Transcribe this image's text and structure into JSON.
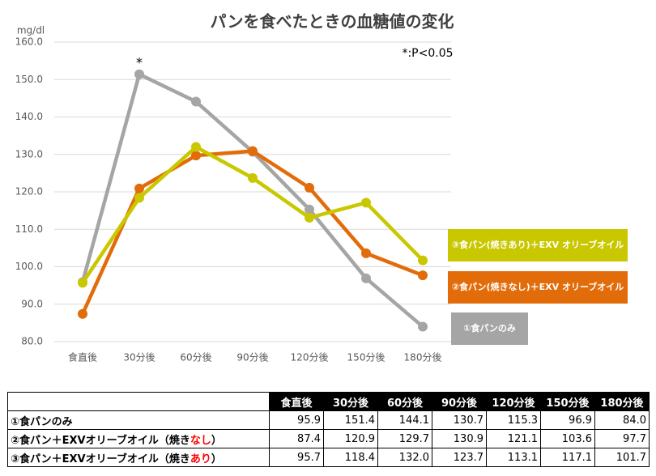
{
  "chart_data": {
    "type": "line",
    "title": "パンを食べたときの血糖値の変化",
    "y_unit": "mg/dl",
    "note": "*:P<0.05",
    "significance_marker": "*",
    "categories": [
      "食直後",
      "30分後",
      "60分後",
      "90分後",
      "120分後",
      "150分後",
      "180分後"
    ],
    "series": [
      {
        "name": "①食パンのみ",
        "color": "#a5a5a5",
        "values": [
          95.9,
          151.4,
          144.1,
          130.7,
          115.3,
          96.9,
          84.0
        ]
      },
      {
        "name": "②食パン(焼きなし)＋EXV オリーブオイル",
        "color": "#e36c0a",
        "values": [
          87.4,
          120.9,
          129.7,
          130.9,
          121.1,
          103.6,
          97.7
        ]
      },
      {
        "name": "③食パン(焼きあり)＋EXV オリーブオイル",
        "color": "#c9c800",
        "values": [
          95.7,
          118.4,
          132.0,
          123.7,
          113.1,
          117.1,
          101.7
        ]
      }
    ],
    "ylim": [
      80,
      160
    ],
    "yticks": [
      {
        "value": 80,
        "label": "80.0"
      },
      {
        "value": 90,
        "label": "90.0"
      },
      {
        "value": 100,
        "label": "100.0"
      },
      {
        "value": 110,
        "label": "110.0"
      },
      {
        "value": 120,
        "label": "120.0"
      },
      {
        "value": 130,
        "label": "130.0"
      },
      {
        "value": 140,
        "label": "140.0"
      },
      {
        "value": 150,
        "label": "150.0"
      },
      {
        "value": 160,
        "label": "160.0"
      }
    ],
    "grid": true
  },
  "table": {
    "rows": [
      {
        "label": [
          "①食パンのみ"
        ],
        "cells": [
          "95.9",
          "151.4",
          "144.1",
          "130.7",
          "115.3",
          "96.9",
          "84.0"
        ]
      },
      {
        "label": [
          "②食パン＋EXVオリーブオイル（焼き",
          "なし",
          "）"
        ],
        "cells": [
          "87.4",
          "120.9",
          "129.7",
          "130.9",
          "121.1",
          "103.6",
          "97.7"
        ]
      },
      {
        "label": [
          "③食パン＋EXVオリーブオイル（焼き",
          "あり",
          "）"
        ],
        "cells": [
          "95.7",
          "118.4",
          "132.0",
          "123.7",
          "113.1",
          "117.1",
          "101.7"
        ]
      }
    ]
  }
}
